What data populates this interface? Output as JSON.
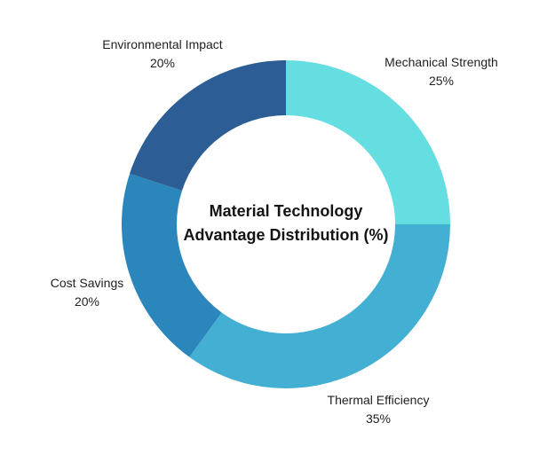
{
  "chart_data": {
    "type": "pie",
    "subtype": "donut",
    "title": "Material Technology Advantage Distribution (%)",
    "title_lines": [
      "Material Technology",
      "Advantage Distribution (%)"
    ],
    "hole_ratio": 0.665,
    "rotation_deg": 0,
    "direction": "clockwise",
    "legend": "none",
    "background": "#ffffff",
    "segments": [
      {
        "id": "mechanical-strength",
        "label": "Mechanical Strength",
        "value": 25,
        "value_label": "25%",
        "color": "#65DEE2"
      },
      {
        "id": "thermal-efficiency",
        "label": "Thermal Efficiency",
        "value": 35,
        "value_label": "35%",
        "color": "#42AFD3"
      },
      {
        "id": "cost-savings",
        "label": "Cost Savings",
        "value": 20,
        "value_label": "20%",
        "color": "#2B86BB"
      },
      {
        "id": "environmental-impact",
        "label": "Environmental Impact",
        "value": 20,
        "value_label": "20%",
        "color": "#2C5E95"
      }
    ]
  }
}
